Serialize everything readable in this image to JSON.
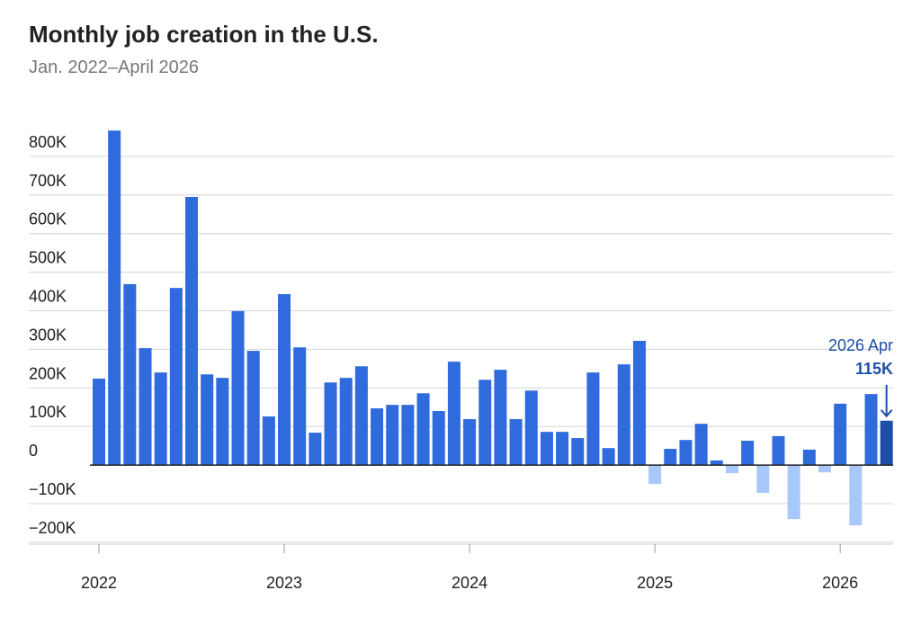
{
  "chart_data": {
    "type": "bar",
    "title": "Monthly job creation in the U.S.",
    "subtitle": "Jan. 2022–April 2026",
    "categories": [
      "2022",
      null,
      null,
      null,
      null,
      null,
      null,
      null,
      null,
      null,
      null,
      null,
      "2023",
      null,
      null,
      null,
      null,
      null,
      null,
      null,
      null,
      null,
      null,
      null,
      "2024",
      null,
      null,
      null,
      null,
      null,
      null,
      null,
      null,
      null,
      null,
      null,
      "2025",
      null,
      null,
      null,
      null,
      null,
      null,
      null,
      null,
      null,
      null,
      null,
      "2026",
      null,
      null,
      null
    ],
    "values": [
      224000,
      867000,
      469000,
      303000,
      240000,
      459000,
      695000,
      235000,
      226000,
      399000,
      296000,
      126000,
      443000,
      305000,
      84000,
      214000,
      226000,
      256000,
      147000,
      156000,
      156000,
      186000,
      140000,
      268000,
      119000,
      221000,
      247000,
      119000,
      193000,
      86000,
      86000,
      70000,
      240000,
      44000,
      261000,
      322000,
      -49000,
      42000,
      65000,
      107000,
      12000,
      -21000,
      63000,
      -72000,
      75000,
      -140000,
      40000,
      -19000,
      159000,
      -156000,
      184000,
      115000
    ],
    "color": "#2f6bdc",
    "negative_color": "#a9c8fa",
    "annotation": {
      "category": "2026 Apr",
      "value_label": "115K",
      "color": "#1d4fa8"
    },
    "ylim": [
      -205000,
      900000
    ],
    "yticks": [
      {
        "value": -200000,
        "label": "−200K"
      },
      {
        "value": -100000,
        "label": "−100K"
      },
      0,
      {
        "value": 100000,
        "label": "100K"
      },
      {
        "value": 200000,
        "label": "200K"
      },
      {
        "value": 300000,
        "label": "300K"
      },
      {
        "value": 400000,
        "label": "400K"
      },
      {
        "value": 500000,
        "label": "500K"
      },
      {
        "value": 600000,
        "label": "600K"
      },
      {
        "value": 700000,
        "label": "700K"
      },
      {
        "value": 800000,
        "label": "800K"
      }
    ],
    "grid": true
  }
}
